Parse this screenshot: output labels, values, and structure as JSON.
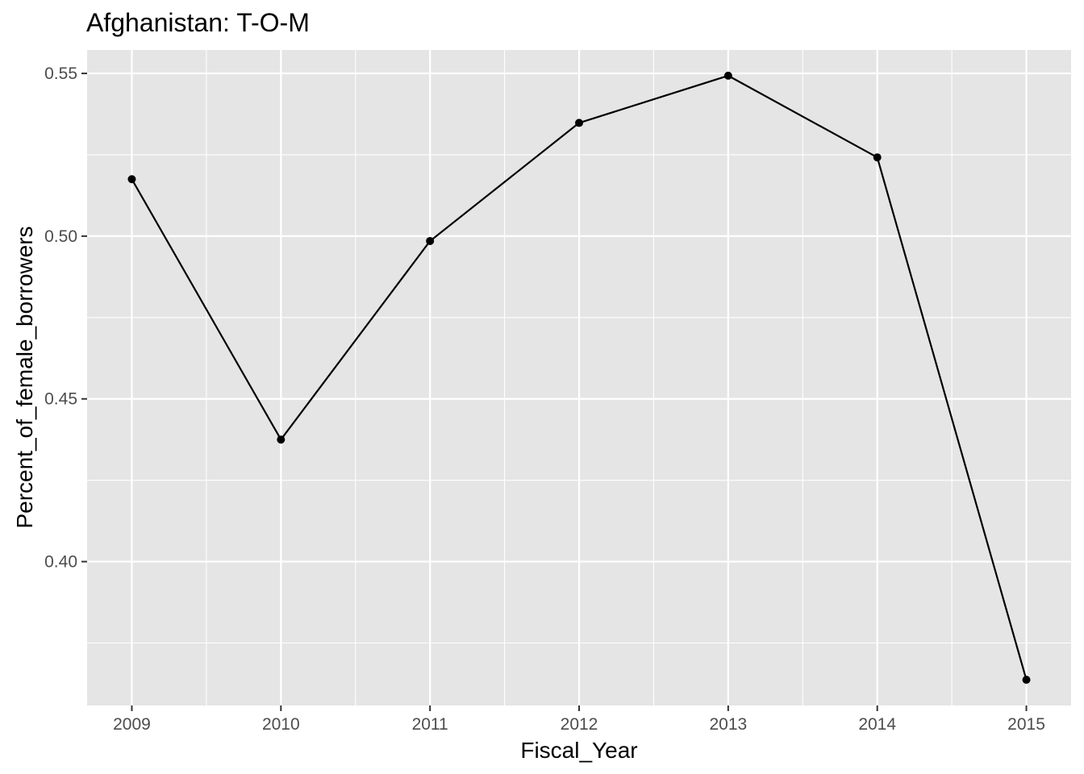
{
  "chart_data": {
    "type": "line",
    "title": "Afghanistan:  T-O-M",
    "xlabel": "Fiscal_Year",
    "ylabel": "Percent_of_female_borrowers",
    "x": [
      2009,
      2010,
      2011,
      2012,
      2013,
      2014,
      2015
    ],
    "x_ticks": [
      "2009",
      "2010",
      "2011",
      "2012",
      "2013",
      "2014",
      "2015"
    ],
    "series": [
      {
        "values": [
          0.5175,
          0.4375,
          0.4985,
          0.5348,
          0.5493,
          0.5242,
          0.3637
        ]
      }
    ],
    "y_ticks": [
      0.4,
      0.45,
      0.5,
      0.55
    ],
    "y_tick_labels": [
      "0.40",
      "0.45",
      "0.50",
      "0.55"
    ],
    "xlim": [
      2008.7,
      2015.3
    ],
    "ylim": [
      0.3558,
      0.5572
    ],
    "grid": true,
    "colors": {
      "panel": "#e5e5e5",
      "grid": "#ffffff",
      "line": "#000000",
      "tick_text": "#4d4d4d",
      "text": "#000000"
    }
  }
}
